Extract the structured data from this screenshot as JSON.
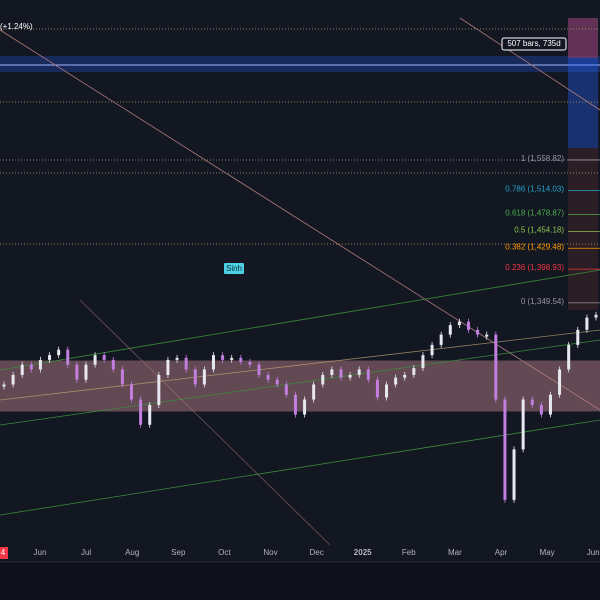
{
  "chart_data": {
    "type": "candlestick",
    "top_label": "(+1.24%)",
    "bars_label": "507 bars, 735d",
    "annotation": "Sinh",
    "corner_label": "4",
    "ylim": [
      973,
      1793
    ],
    "up_color": "#e8e8f0",
    "down_color": "#c27fe0",
    "closes": [
      1230,
      1244,
      1259,
      1252,
      1266,
      1273,
      1281,
      1259,
      1237,
      1259,
      1273,
      1266,
      1252,
      1230,
      1208,
      1171,
      1200,
      1244,
      1266,
      1269,
      1252,
      1230,
      1252,
      1273,
      1266,
      1269,
      1263,
      1259,
      1244,
      1237,
      1230,
      1215,
      1186,
      1208,
      1230,
      1244,
      1252,
      1240,
      1244,
      1252,
      1237,
      1211,
      1230,
      1240,
      1244,
      1254,
      1273,
      1288,
      1303,
      1317,
      1322,
      1310,
      1303,
      1303,
      1208,
      1061,
      1135,
      1208,
      1200,
      1186,
      1215,
      1252,
      1288,
      1310,
      1328,
      1332
    ],
    "fib_levels": [
      {
        "value": 1558.82,
        "label": "1 (1,558.82)",
        "color": "#9598a1"
      },
      {
        "value": 1514.03,
        "label": "0.786 (1,514.03)",
        "color": "#22a4c7"
      },
      {
        "value": 1478.87,
        "label": "0.618 (1,478.87)",
        "color": "#4caf50"
      },
      {
        "value": 1454.18,
        "label": "0.5 (1,454.18)",
        "color": "#8bc34a"
      },
      {
        "value": 1429.48,
        "label": "0.382 (1,429.48)",
        "color": "#ff9800"
      },
      {
        "value": 1398.93,
        "label": "0.236 (1,398.93)",
        "color": "#f23645"
      },
      {
        "value": 1349.54,
        "label": "0 (1,349.54)",
        "color": "#9598a1"
      }
    ],
    "x_labels": [
      "Jun",
      "Jul",
      "Aug",
      "Sep",
      "Oct",
      "Nov",
      "Dec",
      "2025",
      "Feb",
      "Mar",
      "Apr",
      "May",
      "Jun"
    ]
  }
}
